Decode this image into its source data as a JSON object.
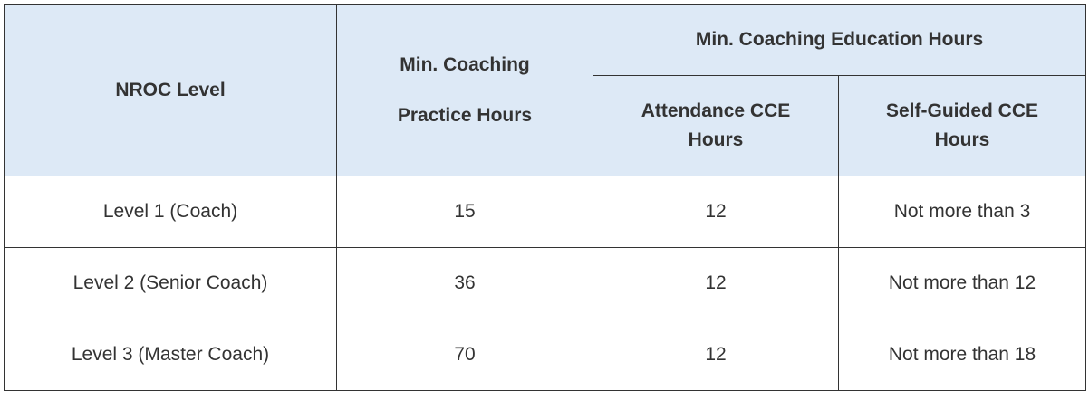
{
  "table": {
    "headers": {
      "level": "NROC Level",
      "practice_line1": "Min. Coaching",
      "practice_line2": "Practice Hours",
      "education": "Min. Coaching Education Hours",
      "attendance_line1": "Attendance CCE",
      "attendance_line2": "Hours",
      "selfguided_line1": "Self-Guided CCE",
      "selfguided_line2": "Hours"
    },
    "rows": [
      {
        "level": "Level 1 (Coach)",
        "practice": "15",
        "attendance": "12",
        "selfguided": "Not more than 3"
      },
      {
        "level": "Level 2 (Senior Coach)",
        "practice": "36",
        "attendance": "12",
        "selfguided": "Not more than 12"
      },
      {
        "level": "Level 3 (Master Coach)",
        "practice": "70",
        "attendance": "12",
        "selfguided": "Not more than 18"
      }
    ]
  }
}
